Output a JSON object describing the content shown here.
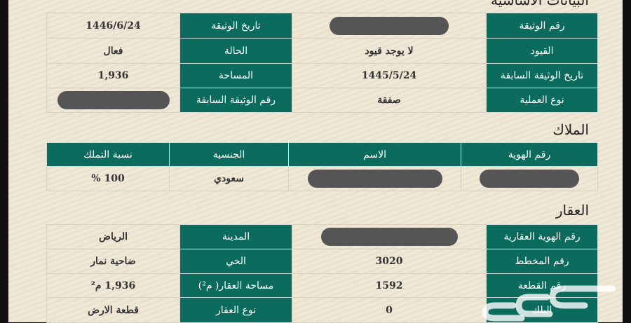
{
  "basic": {
    "title": "البيانات الأساسية",
    "rows": [
      {
        "k1": "رقم الوثيقة",
        "v1": "",
        "k2": "تاريخ الوثيقة",
        "v2": "1446/6/24"
      },
      {
        "k1": "القيود",
        "v1": "لا يوجد قيود",
        "k2": "الحالة",
        "v2": "فعال"
      },
      {
        "k1": "تاريخ الوثيقة السابقة",
        "v1": "1445/5/24",
        "k2": "المساحة",
        "v2": "1,936"
      },
      {
        "k1": "نوع العملية",
        "v1": "صفقة",
        "k2": "رقم الوثيقة السابقة",
        "v2": ""
      }
    ]
  },
  "owners": {
    "title": "الملاك",
    "headers": [
      "رقم الهوية",
      "الاسم",
      "الجنسية",
      "نسبة التملك"
    ],
    "rows": [
      {
        "id": "",
        "name": "",
        "nationality": "سعودي",
        "share": "100 %"
      }
    ]
  },
  "property": {
    "title": "العقار",
    "rows": [
      {
        "k1": "رقم الهوية العقارية",
        "v1": "",
        "k2": "المدينة",
        "v2": "الرياض"
      },
      {
        "k1": "رقم المخطط",
        "v1": "3020",
        "k2": "الحي",
        "v2": "ضاحية نمار"
      },
      {
        "k1": "رقم القطعة",
        "v1": "1592",
        "k2": "مساحة العقار( م²)",
        "v2": "1,936 م²"
      },
      {
        "k1": "البلك",
        "v1": "0",
        "k2": "نوع العقار",
        "v2": "قطعة الارض"
      }
    ]
  },
  "watermark": "حراج",
  "colors": {
    "header_green": "#0b6b5d",
    "background": "#efe7d6"
  }
}
